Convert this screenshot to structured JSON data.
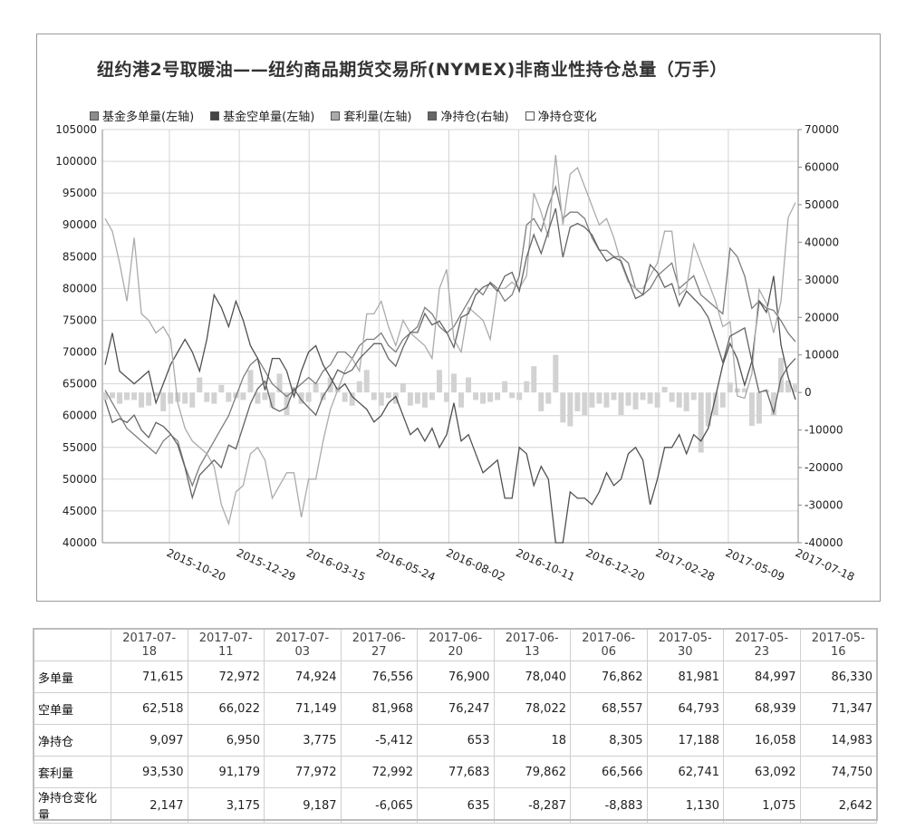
{
  "chart_data": {
    "type": "line",
    "title": "纽约港2号取暖油——纽约商品期货交易所(NYMEX)非商业性持仓总量（万手）",
    "legend": [
      "基金多单量(左轴)",
      "基金空单量(左轴)",
      "套利量(左轴)",
      "净持仓(右轴)",
      "净持仓变化"
    ],
    "left_axis": {
      "min": 40000,
      "max": 105000,
      "ticks": [
        "105000",
        "100000",
        "95000",
        "90000",
        "85000",
        "80000",
        "75000",
        "70000",
        "65000",
        "60000",
        "55000",
        "50000",
        "45000",
        "40000"
      ]
    },
    "right_axis": {
      "min": -40000,
      "max": 70000,
      "ticks": [
        "70000",
        "60000",
        "50000",
        "40000",
        "30000",
        "20000",
        "10000",
        "0",
        "-10000",
        "-20000",
        "-30000",
        "-40000"
      ]
    },
    "x_tick_labels": [
      "2015-10-20",
      "2015-12-29",
      "2016-03-15",
      "2016-05-24",
      "2016-08-02",
      "2016-10-11",
      "2016-12-20",
      "2017-02-28",
      "2017-05-09",
      "2017-07-18"
    ],
    "grid": true,
    "legend_position": "top-left",
    "series": [
      {
        "name": "基金多单量(左轴)",
        "axis": "left",
        "color": "#7d7d7d",
        "values": [
          64000,
          62000,
          60000,
          58000,
          57000,
          56000,
          55000,
          54000,
          56000,
          57000,
          56000,
          52000,
          49000,
          52000,
          54000,
          56000,
          58000,
          60000,
          63000,
          66000,
          68000,
          69000,
          67000,
          65000,
          64000,
          63000,
          64000,
          65000,
          66000,
          65000,
          67000,
          68000,
          70000,
          70000,
          69000,
          71000,
          72000,
          72000,
          73000,
          71000,
          70000,
          72000,
          73000,
          74000,
          77000,
          76000,
          74000,
          73000,
          74000,
          76000,
          78000,
          80000,
          79000,
          81000,
          80000,
          78000,
          79000,
          82000,
          90000,
          91000,
          89000,
          93000,
          96000,
          91000,
          92000,
          92000,
          91000,
          88000,
          86000,
          86000,
          85000,
          85000,
          84000,
          80000,
          79000,
          80000,
          82000,
          83000,
          84000,
          80000,
          81000,
          82000,
          79000,
          78000,
          77000,
          76000,
          86330,
          84997,
          81981,
          76862,
          78040,
          76900,
          76556,
          74924,
          72972,
          71615
        ]
      },
      {
        "name": "基金空单量(左轴)",
        "axis": "left",
        "color": "#505050",
        "values": [
          68000,
          73000,
          67000,
          66000,
          65000,
          66000,
          67000,
          62000,
          65000,
          68000,
          70000,
          72000,
          70000,
          67000,
          72000,
          79000,
          77000,
          74000,
          78000,
          75000,
          71000,
          69000,
          64000,
          69000,
          69000,
          67000,
          63000,
          67000,
          70000,
          71000,
          68000,
          66000,
          64000,
          65000,
          63000,
          62000,
          61000,
          59000,
          60000,
          62000,
          63000,
          60000,
          57000,
          58000,
          56000,
          58000,
          55000,
          57000,
          62000,
          56000,
          57000,
          54000,
          51000,
          52000,
          53000,
          47000,
          47000,
          55000,
          54000,
          49000,
          52000,
          50000,
          40000,
          40000,
          48000,
          47000,
          47000,
          46000,
          48000,
          51000,
          49000,
          50000,
          54000,
          55000,
          53000,
          46000,
          50000,
          55000,
          55000,
          57000,
          54000,
          57000,
          56000,
          58000,
          63000,
          68000,
          71347,
          68939,
          64793,
          68557,
          78022,
          76247,
          81968,
          71149,
          66022,
          62518
        ]
      },
      {
        "name": "套利量(左轴)",
        "axis": "left",
        "color": "#ababab",
        "values": [
          91000,
          89000,
          84000,
          78000,
          88000,
          76000,
          75000,
          73000,
          74000,
          72000,
          62000,
          58000,
          56000,
          55000,
          54000,
          52000,
          46000,
          43000,
          48000,
          49000,
          54000,
          55000,
          53000,
          47000,
          49000,
          51000,
          51000,
          44000,
          50000,
          50000,
          56000,
          61000,
          64000,
          67000,
          69000,
          67000,
          76000,
          76000,
          78000,
          74000,
          71000,
          75000,
          73000,
          72000,
          71000,
          69000,
          80000,
          83000,
          72000,
          70000,
          77000,
          76000,
          75000,
          72000,
          80000,
          80000,
          81000,
          80000,
          82000,
          95000,
          92000,
          88000,
          101000,
          90000,
          98000,
          99000,
          96000,
          93000,
          90000,
          91000,
          88000,
          84000,
          81000,
          80000,
          80000,
          82000,
          84000,
          89000,
          89000,
          79000,
          80000,
          87000,
          84000,
          81000,
          78000,
          74000,
          74750,
          63092,
          62741,
          66566,
          79862,
          77683,
          72992,
          77972,
          91179,
          93530
        ]
      },
      {
        "name": "净持仓(右轴)",
        "axis": "right",
        "color": "#646464",
        "values": [
          -2000,
          -8000,
          -7000,
          -8000,
          -6000,
          -10000,
          -12000,
          -8000,
          -9000,
          -11000,
          -14000,
          -20000,
          -28000,
          -22000,
          -20000,
          -18000,
          -20000,
          -14000,
          -15000,
          -9000,
          -3000,
          1000,
          3000,
          -4000,
          -5000,
          -4000,
          1000,
          -2000,
          -4000,
          -6000,
          -1000,
          2000,
          6000,
          5000,
          6000,
          9000,
          11000,
          13000,
          13000,
          9000,
          7000,
          12000,
          16000,
          16000,
          21000,
          18000,
          19000,
          16000,
          12000,
          20000,
          21000,
          26000,
          28000,
          29000,
          27000,
          31000,
          32000,
          27000,
          36000,
          42000,
          37000,
          43000,
          49000,
          36000,
          44000,
          45000,
          44000,
          42000,
          38000,
          35000,
          36000,
          35000,
          30000,
          25000,
          26000,
          34000,
          32000,
          28000,
          29000,
          23000,
          27000,
          25000,
          23000,
          20000,
          14000,
          8000,
          14983,
          16058,
          17188,
          8305,
          18,
          653,
          -5412,
          3775,
          6950,
          9097
        ]
      },
      {
        "name": "净持仓变化",
        "axis": "right",
        "color": "#d2d2d2",
        "type": "bar",
        "values": [
          -2000,
          -1500,
          -3000,
          -2000,
          -2000,
          -4000,
          -3500,
          -1000,
          -5000,
          -3000,
          -2500,
          -3000,
          -4000,
          4000,
          -2500,
          -3000,
          2000,
          -2500,
          -1500,
          -2000,
          6000,
          -3000,
          -2000,
          -4000,
          5000,
          -6000,
          1500,
          -3000,
          -2500,
          2500,
          -2000,
          4000,
          1500,
          -2500,
          -3500,
          3000,
          6000,
          -2000,
          -3500,
          -1500,
          -3000,
          2500,
          -3500,
          -3000,
          -4000,
          -2000,
          6000,
          -2500,
          5000,
          -4000,
          4000,
          -2000,
          -3000,
          -2500,
          -2000,
          3000,
          -1500,
          -2000,
          3000,
          7000,
          -5000,
          -3000,
          10000,
          -8000,
          -9000,
          -5000,
          -6000,
          -4000,
          -3000,
          -4000,
          -2000,
          -6000,
          -3500,
          -4500,
          -2000,
          -3000,
          -4000,
          1500,
          -2500,
          -4000,
          -5000,
          -2000,
          -16000,
          -9000,
          -6000,
          -4000,
          2642,
          1075,
          1130,
          -8883,
          -8287,
          635,
          -6065,
          9187,
          3175,
          2147
        ]
      }
    ]
  },
  "table": {
    "dates": [
      "2017-07-18",
      "2017-07-11",
      "2017-07-03",
      "2017-06-27",
      "2017-06-20",
      "2017-06-13",
      "2017-06-06",
      "2017-05-30",
      "2017-05-23",
      "2017-05-16"
    ],
    "rows": [
      {
        "label": "多单量",
        "values": [
          "71,615",
          "72,972",
          "74,924",
          "76,556",
          "76,900",
          "78,040",
          "76,862",
          "81,981",
          "84,997",
          "86,330"
        ]
      },
      {
        "label": "空单量",
        "values": [
          "62,518",
          "66,022",
          "71,149",
          "81,968",
          "76,247",
          "78,022",
          "68,557",
          "64,793",
          "68,939",
          "71,347"
        ]
      },
      {
        "label": "净持仓",
        "values": [
          "9,097",
          "6,950",
          "3,775",
          "-5,412",
          "653",
          "18",
          "8,305",
          "17,188",
          "16,058",
          "14,983"
        ]
      },
      {
        "label": "套利量",
        "values": [
          "93,530",
          "91,179",
          "77,972",
          "72,992",
          "77,683",
          "79,862",
          "66,566",
          "62,741",
          "63,092",
          "74,750"
        ]
      },
      {
        "label": "净持仓变化量",
        "values": [
          "2,147",
          "3,175",
          "9,187",
          "-6,065",
          "635",
          "-8,287",
          "-8,883",
          "1,130",
          "1,075",
          "2,642"
        ]
      }
    ]
  }
}
